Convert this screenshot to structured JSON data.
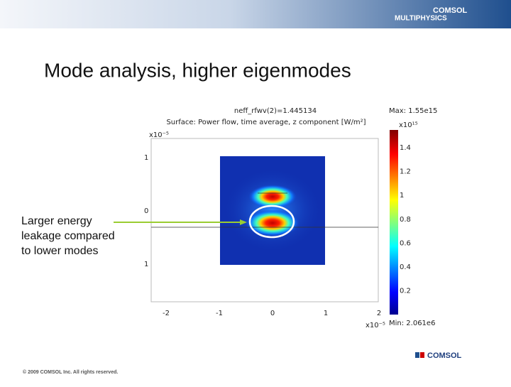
{
  "header": {
    "logo_line1": "COMSOL",
    "logo_line2": "MULTIPHYSICS"
  },
  "slide": {
    "title": "Mode analysis, higher eigenmodes",
    "annotation": "Larger energy leakage compared to lower modes"
  },
  "plot": {
    "title_line1": "neff_rfwv(2)=1.445134",
    "title_line2": "Surface: Power flow, time average, z component [W/m²]",
    "y_exponent": "x10⁻⁵",
    "y_ticks": [
      "1",
      "0",
      "1"
    ],
    "x_exponent": "x10⁻⁵",
    "x_ticks": [
      "-2",
      "-1",
      "0",
      "1",
      "2"
    ],
    "colorbar": {
      "max": "Max: 1.55e15",
      "exponent": "x10¹⁵",
      "ticks": [
        "1.4",
        "1.2",
        "1",
        "0.8",
        "0.6",
        "0.4",
        "0.2"
      ],
      "min": "Min: 2.061e6"
    }
  },
  "footer": {
    "copyright": "© 2009 COMSOL Inc. All rights reserved.",
    "logo": "COMSOL"
  }
}
